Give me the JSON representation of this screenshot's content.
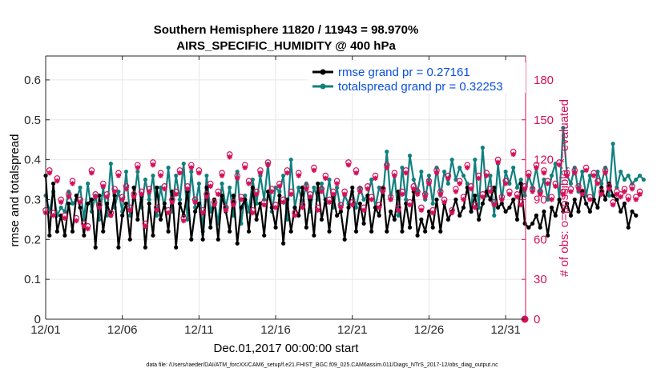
{
  "chart_data": {
    "type": "line",
    "title_line1": "Southern Hemisphere 11820 / 11943 = 98.970%",
    "title_line2": "AIRS_SPECIFIC_HUMIDITY @ 400 hPa",
    "xlabel": "Dec.01,2017 00:00:00 start",
    "ylabel_left": "rmse and totalspread",
    "ylabel_right": "# of obs: o=possible; *=evaluated",
    "ylim_left": [
      0,
      0.66
    ],
    "ylim_right": [
      0,
      198
    ],
    "xlim_days": [
      0,
      31.3
    ],
    "xtick_positions_days": [
      0,
      5,
      10,
      15,
      20,
      25,
      30
    ],
    "xtick_labels": [
      "12/01",
      "12/06",
      "12/11",
      "12/16",
      "12/21",
      "12/26",
      "12/31"
    ],
    "ytick_left_values": [
      0,
      0.1,
      0.2,
      0.3,
      0.4,
      0.5,
      0.6
    ],
    "ytick_left_labels": [
      "0",
      "0.1",
      "0.2",
      "0.3",
      "0.4",
      "0.5",
      "0.6"
    ],
    "ytick_right_values": [
      0,
      30,
      60,
      90,
      120,
      150,
      180
    ],
    "ytick_right_labels": [
      "0",
      "30",
      "60",
      "90",
      "120",
      "150",
      "180"
    ],
    "legend": [
      "rmse grand pr = 0.27161",
      "totalspread grand pr = 0.32253"
    ],
    "colors": {
      "rmse": "#000000",
      "spread": "#10807e",
      "obs": "#d6105a",
      "legend_text": "#0a4fe0"
    },
    "series": [
      {
        "name": "rmse",
        "x_start_day": 0,
        "x_step_days": 0.25,
        "values": [
          0.36,
          0.21,
          0.34,
          0.22,
          0.26,
          0.21,
          0.29,
          0.22,
          0.31,
          0.28,
          0.21,
          0.29,
          0.3,
          0.18,
          0.31,
          0.22,
          0.29,
          0.26,
          0.31,
          0.18,
          0.26,
          0.29,
          0.2,
          0.33,
          0.25,
          0.31,
          0.18,
          0.29,
          0.21,
          0.33,
          0.25,
          0.29,
          0.22,
          0.32,
          0.18,
          0.29,
          0.26,
          0.32,
          0.2,
          0.27,
          0.29,
          0.2,
          0.33,
          0.23,
          0.3,
          0.2,
          0.31,
          0.27,
          0.22,
          0.31,
          0.19,
          0.28,
          0.3,
          0.22,
          0.33,
          0.25,
          0.29,
          0.21,
          0.32,
          0.28,
          0.23,
          0.31,
          0.19,
          0.3,
          0.22,
          0.28,
          0.26,
          0.33,
          0.23,
          0.3,
          0.21,
          0.34,
          0.25,
          0.3,
          0.22,
          0.31,
          0.26,
          0.27,
          0.2,
          0.28,
          0.33,
          0.22,
          0.29,
          0.24,
          0.31,
          0.22,
          0.28,
          0.26,
          0.33,
          0.22,
          0.27,
          0.25,
          0.32,
          0.22,
          0.29,
          0.23,
          0.32,
          0.21,
          0.25,
          0.22,
          0.27,
          0.23,
          0.3,
          0.22,
          0.29,
          0.25,
          0.27,
          0.3,
          0.26,
          0.28,
          0.33,
          0.27,
          0.31,
          0.25,
          0.29,
          0.32,
          0.3,
          0.33,
          0.28,
          0.29,
          0.27,
          0.28,
          0.3,
          0.25,
          0.34,
          0.24,
          0.23,
          0.24,
          0.26,
          0.23,
          0.27,
          0.21,
          0.28,
          0.26,
          0.3,
          0.27,
          0.29,
          0.26,
          0.3,
          0.27,
          0.32,
          0.29,
          0.27,
          0.3,
          0.28,
          0.33,
          0.3,
          0.34,
          0.31,
          0.3,
          0.27,
          0.29,
          0.23,
          0.27,
          0.26
        ]
      },
      {
        "name": "totalspread",
        "x_start_day": 0,
        "x_step_days": 0.25,
        "values": [
          0.31,
          0.27,
          0.32,
          0.26,
          0.28,
          0.27,
          0.32,
          0.29,
          0.3,
          0.33,
          0.25,
          0.34,
          0.27,
          0.31,
          0.25,
          0.33,
          0.26,
          0.39,
          0.28,
          0.32,
          0.27,
          0.37,
          0.26,
          0.3,
          0.37,
          0.28,
          0.35,
          0.3,
          0.36,
          0.26,
          0.33,
          0.28,
          0.38,
          0.27,
          0.36,
          0.3,
          0.39,
          0.25,
          0.37,
          0.28,
          0.34,
          0.22,
          0.36,
          0.27,
          0.3,
          0.24,
          0.34,
          0.28,
          0.33,
          0.26,
          0.37,
          0.24,
          0.31,
          0.27,
          0.35,
          0.29,
          0.36,
          0.3,
          0.39,
          0.27,
          0.33,
          0.32,
          0.36,
          0.25,
          0.4,
          0.28,
          0.33,
          0.29,
          0.34,
          0.27,
          0.33,
          0.3,
          0.34,
          0.29,
          0.35,
          0.28,
          0.33,
          0.27,
          0.31,
          0.29,
          0.32,
          0.28,
          0.33,
          0.3,
          0.31,
          0.35,
          0.28,
          0.33,
          0.31,
          0.42,
          0.3,
          0.36,
          0.26,
          0.38,
          0.3,
          0.41,
          0.35,
          0.32,
          0.37,
          0.3,
          0.36,
          0.29,
          0.38,
          0.31,
          0.37,
          0.34,
          0.4,
          0.35,
          0.38,
          0.36,
          0.34,
          0.27,
          0.4,
          0.28,
          0.43,
          0.31,
          0.36,
          0.26,
          0.39,
          0.3,
          0.37,
          0.34,
          0.38,
          0.33,
          0.35,
          0.31,
          0.36,
          0.33,
          0.38,
          0.32,
          0.35,
          0.3,
          0.36,
          0.39,
          0.3,
          0.48,
          0.36,
          0.34,
          0.38,
          0.32,
          0.37,
          0.31,
          0.36,
          0.3,
          0.37,
          0.34,
          0.38,
          0.31,
          0.44,
          0.33,
          0.37,
          0.35,
          0.36,
          0.34,
          0.35,
          0.36,
          0.35
        ]
      },
      {
        "name": "obs_possible",
        "x_start_day": 0,
        "x_step_days": 0.25,
        "values": [
          82,
          112,
          80,
          106,
          90,
          78,
          94,
          104,
          76,
          90,
          72,
          70,
          112,
          94,
          86,
          102,
          94,
          80,
          98,
          110,
          92,
          100,
          84,
          94,
          116,
          96,
          72,
          98,
          118,
          84,
          110,
          100,
          82,
          90,
          96,
          112,
          76,
          100,
          116,
          90,
          112,
          82,
          94,
          102,
          88,
          96,
          110,
          84,
          124,
          88,
          108,
          92,
          116,
          104,
          82,
          96,
          112,
          88,
          118,
          98,
          86,
          102,
          90,
          112,
          96,
          80,
          110,
          86,
          100,
          94,
          114,
          84,
          98,
          108,
          90,
          96,
          104,
          86,
          96,
          118,
          88,
          112,
          98,
          84,
          100,
          92,
          108,
          86,
          98,
          116,
          92,
          110,
          84,
          96,
          112,
          88,
          100,
          96,
          84,
          94,
          104,
          82,
          112,
          96,
          90,
          108,
          82,
          98,
          104,
          92,
          116,
          100,
          86,
          108,
          94,
          110,
          98,
          88,
          120,
          92,
          104,
          96,
          126,
          94,
          88,
          100,
          110,
          98,
          116,
          96,
          112,
          104,
          92,
          102,
          118,
          96,
          110,
          98,
          112,
          100,
          96,
          114,
          92,
          110,
          104,
          96,
          112,
          100,
          88,
          96,
          94,
          98,
          92,
          100,
          92,
          96
        ]
      },
      {
        "name": "obs_evaluated",
        "x_start_day": 0,
        "x_step_days": 0.25,
        "values": [
          80,
          110,
          78,
          104,
          88,
          76,
          92,
          102,
          74,
          88,
          70,
          68,
          110,
          92,
          84,
          100,
          92,
          78,
          96,
          108,
          90,
          98,
          82,
          92,
          114,
          94,
          70,
          96,
          116,
          82,
          108,
          98,
          80,
          88,
          94,
          110,
          74,
          98,
          114,
          88,
          110,
          80,
          92,
          100,
          86,
          94,
          108,
          82,
          122,
          86,
          106,
          90,
          114,
          102,
          80,
          94,
          110,
          86,
          116,
          96,
          84,
          100,
          88,
          110,
          94,
          78,
          108,
          84,
          98,
          92,
          112,
          82,
          96,
          106,
          88,
          94,
          102,
          84,
          94,
          116,
          86,
          110,
          96,
          82,
          98,
          90,
          106,
          84,
          96,
          114,
          90,
          108,
          82,
          94,
          110,
          86,
          98,
          94,
          82,
          92,
          102,
          80,
          110,
          94,
          88,
          106,
          80,
          96,
          102,
          90,
          114,
          98,
          84,
          106,
          92,
          108,
          96,
          86,
          118,
          90,
          102,
          94,
          124,
          92,
          86,
          98,
          108,
          96,
          114,
          94,
          110,
          102,
          90,
          100,
          116,
          94,
          108,
          96,
          110,
          98,
          94,
          112,
          90,
          108,
          102,
          94,
          110,
          98,
          86,
          94,
          92,
          96,
          90,
          98,
          90,
          94
        ]
      }
    ],
    "final_point": {
      "x_day": 31.25,
      "obs": 0
    }
  },
  "footer": "data file: /Users/raeder/DAI/ATM_forcXX/CAM6_setup/f.e21.FHIST_BGC.f09_025.CAM6assim.011/Diags_NTrS_2017-12/obs_diag_output.nc"
}
